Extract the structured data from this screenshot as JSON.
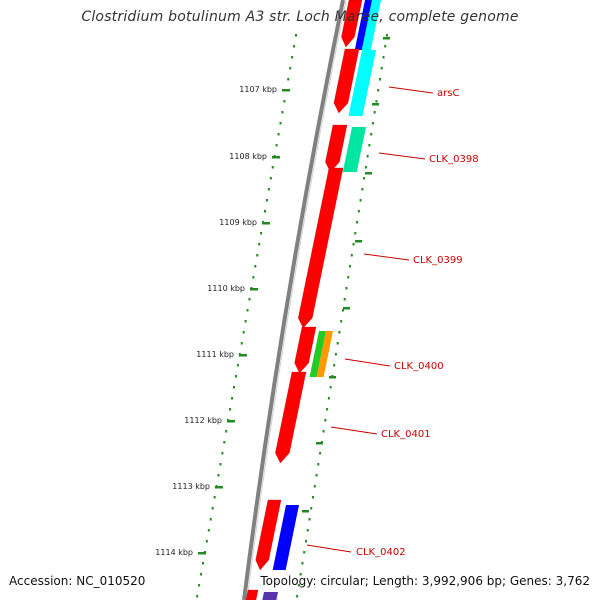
{
  "title": "Clostridium botulinum A3 str. Loch Maree, complete genome",
  "footer": {
    "accession": "Accession: NC_010520",
    "summary": "Topology: circular; Length: 3,992,906 bp; Genes: 3,762"
  },
  "colors": {
    "backbone": "#808080",
    "tick": "#228b22",
    "cds": "#ff0000",
    "label": "#cc0000",
    "cyan": "#00ffff",
    "teal": "#00e5a0",
    "green": "#22cc22",
    "orange": "#ff9900",
    "blue": "#0000ff",
    "purple": "#5533aa"
  },
  "scale_labels": [
    "1107 kbp",
    "1108 kbp",
    "1109 kbp",
    "1110 kbp",
    "1111 kbp",
    "1112 kbp",
    "1113 kbp",
    "1114 kbp"
  ],
  "gene_labels": [
    "arsC",
    "CLK_0398",
    "CLK_0399",
    "CLK_0400",
    "CLK_0401",
    "CLK_0402"
  ]
}
